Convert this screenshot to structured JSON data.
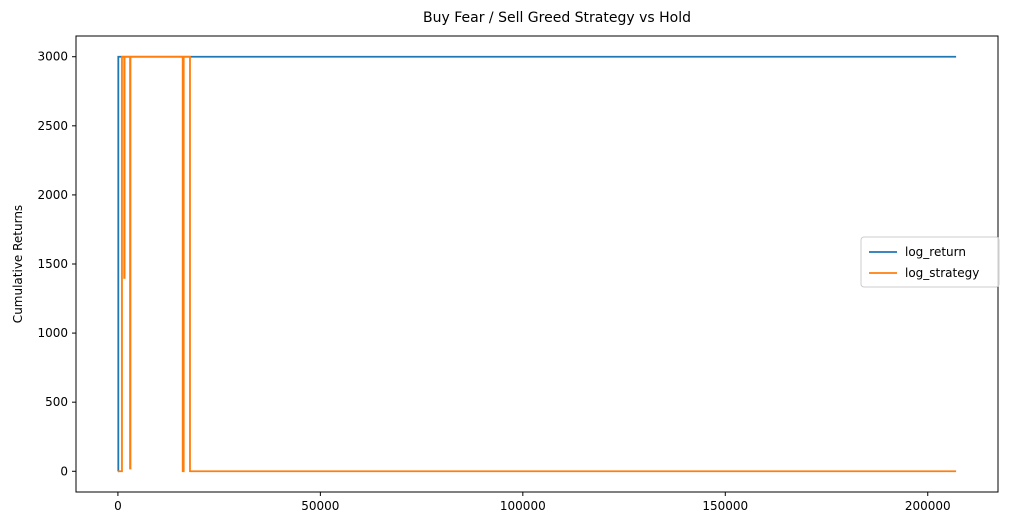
{
  "chart_data": {
    "type": "line",
    "title": "Buy Fear / Sell Greed Strategy vs Hold",
    "xlabel": "",
    "ylabel": "Cumulative Returns",
    "xlim": [
      -10350,
      217350
    ],
    "ylim": [
      -150,
      3150
    ],
    "x_ticks": [
      0,
      50000,
      100000,
      150000,
      200000
    ],
    "x_tick_labels": [
      "0",
      "50000",
      "100000",
      "150000",
      "200000"
    ],
    "y_ticks": [
      0,
      500,
      1000,
      1500,
      2000,
      2500,
      3000
    ],
    "y_tick_labels": [
      "0",
      "500",
      "1000",
      "1500",
      "2000",
      "2500",
      "3000"
    ],
    "grid": false,
    "legend_position": "center-right",
    "series": [
      {
        "name": "log_return",
        "color": "#1f77b4",
        "x": [
          0,
          100,
          100,
          207000
        ],
        "y": [
          0,
          0,
          3000,
          3000
        ]
      },
      {
        "name": "log_strategy",
        "color": "#ff7f0e",
        "x": [
          0,
          1000,
          1000,
          1550,
          1550,
          1650,
          1650,
          1750,
          1750,
          3000,
          3000,
          3100,
          3100,
          3150,
          3150,
          16000,
          16000,
          16250,
          16250,
          16700,
          16700,
          17200,
          17200,
          17800,
          17800,
          207000
        ],
        "y": [
          0,
          0,
          3000,
          3000,
          1400,
          1400,
          3000,
          3000,
          3000,
          3000,
          20,
          20,
          3000,
          3000,
          3000,
          3000,
          0,
          0,
          3000,
          3000,
          3000,
          3000,
          3000,
          3000,
          0,
          0
        ]
      }
    ]
  }
}
